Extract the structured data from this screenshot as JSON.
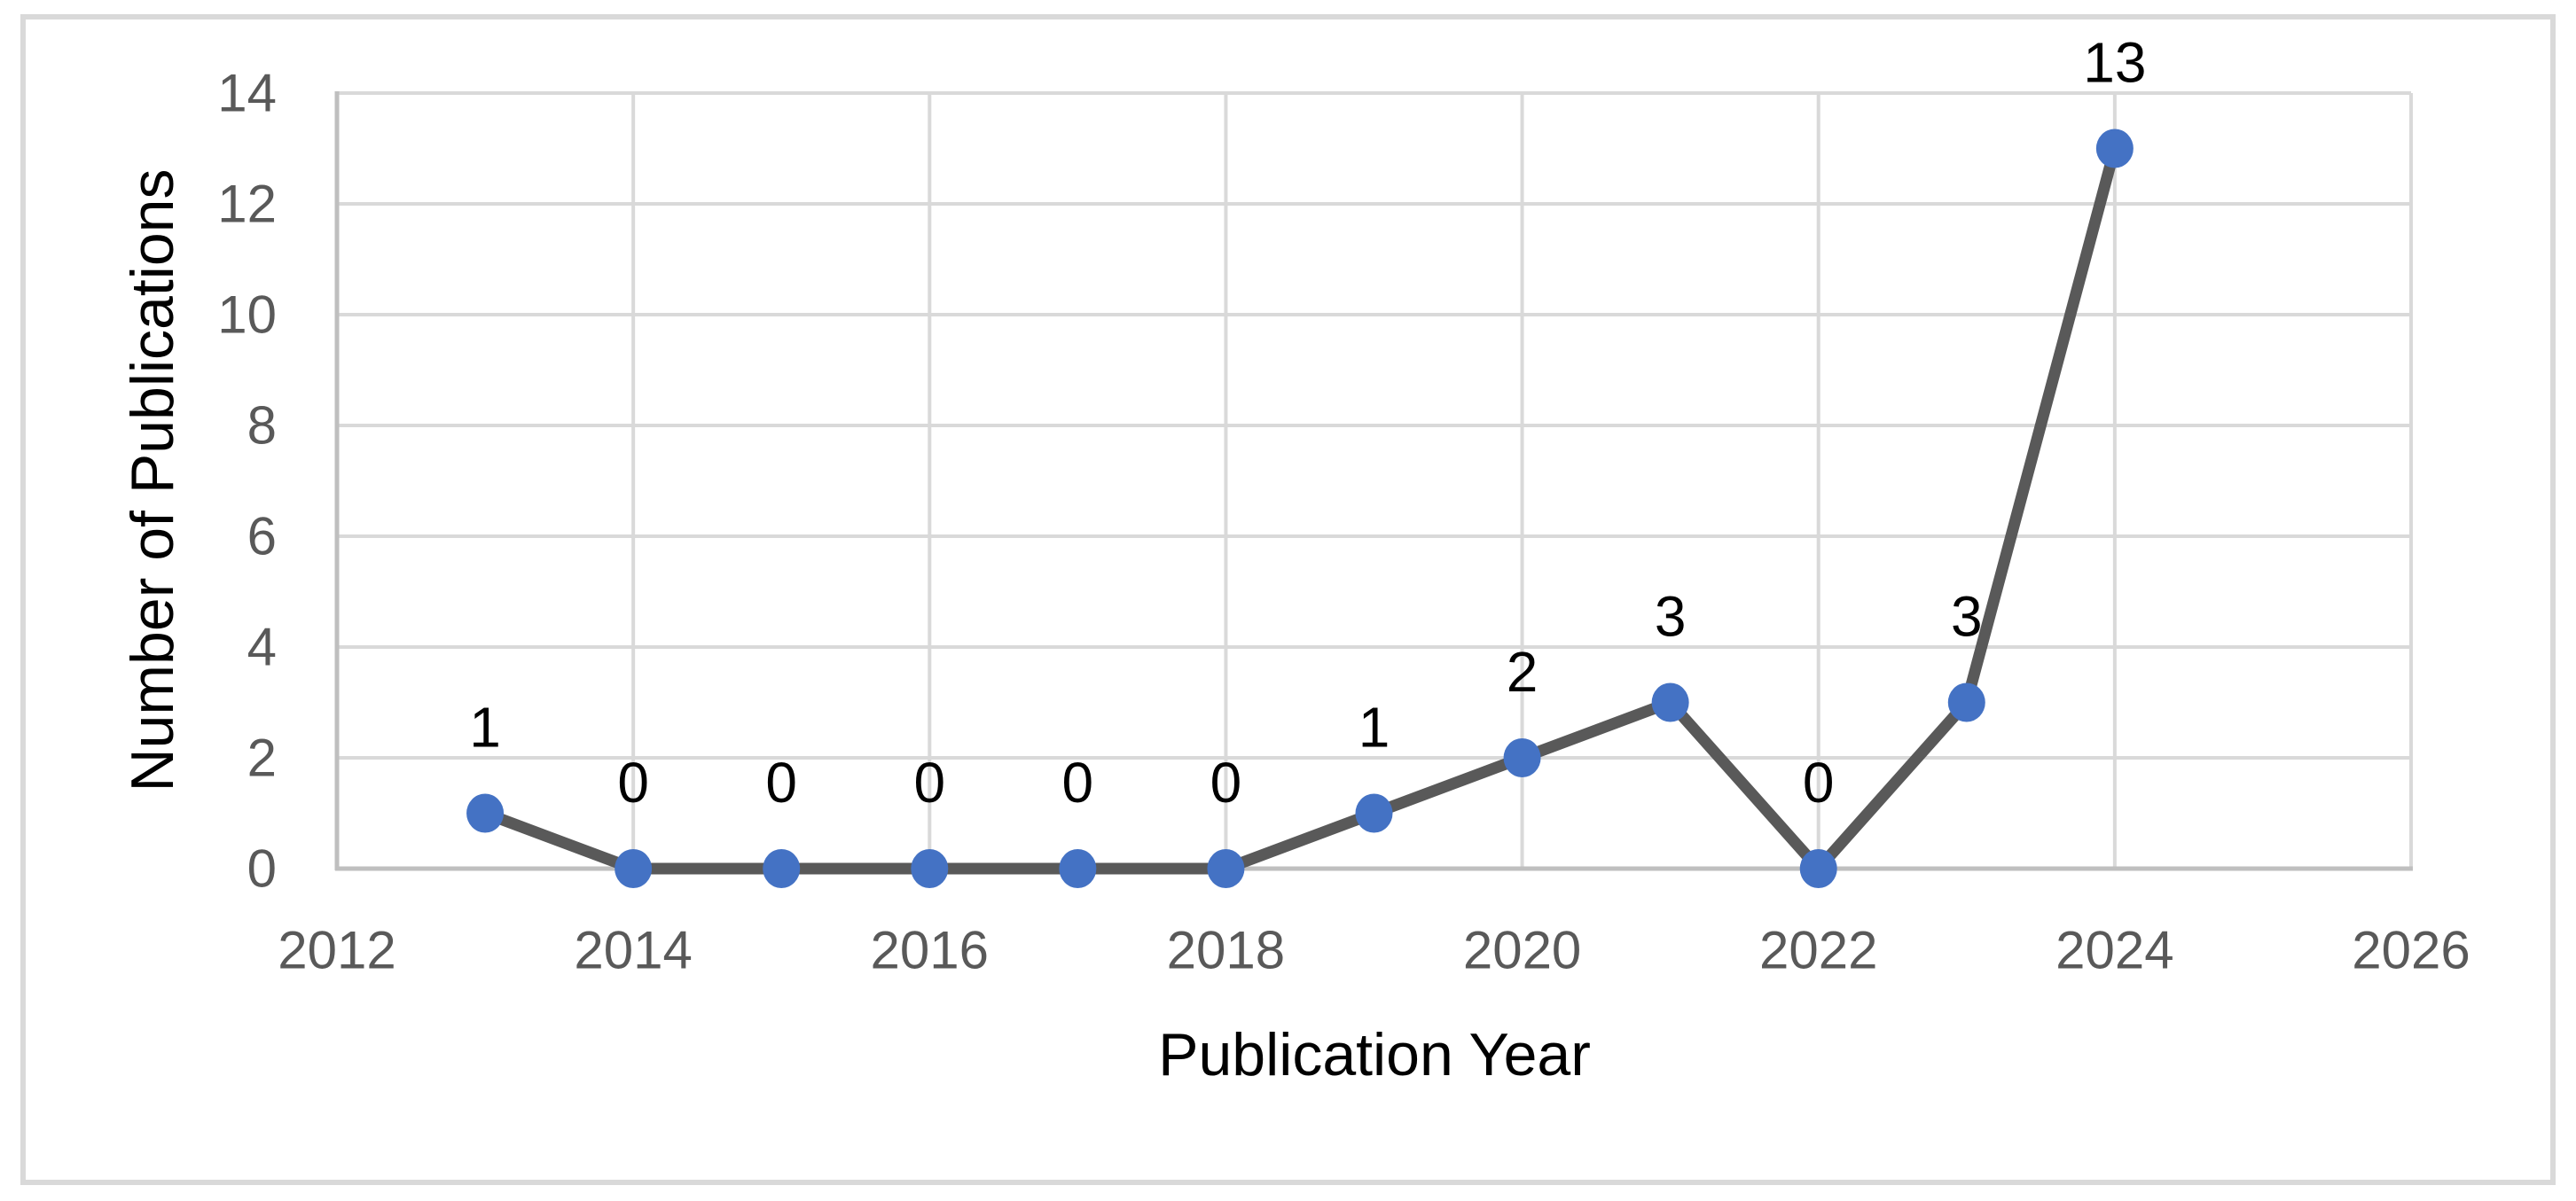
{
  "chart_data": {
    "type": "line",
    "title": "",
    "x": [
      2013,
      2014,
      2015,
      2016,
      2017,
      2018,
      2019,
      2020,
      2021,
      2022,
      2023,
      2024
    ],
    "values": [
      1,
      0,
      0,
      0,
      0,
      0,
      1,
      2,
      3,
      0,
      3,
      13
    ],
    "data_labels": [
      "1",
      "0",
      "0",
      "0",
      "0",
      "0",
      "1",
      "2",
      "3",
      "0",
      "3",
      "13"
    ],
    "xlabel": "Publication Year",
    "ylabel": "Number of Publications",
    "xlim": [
      2012,
      2026
    ],
    "ylim": [
      0,
      14
    ],
    "x_ticks": [
      2012,
      2014,
      2016,
      2018,
      2020,
      2022,
      2024,
      2026
    ],
    "y_ticks": [
      0,
      2,
      4,
      6,
      8,
      10,
      12,
      14
    ],
    "grid": "both",
    "legend": "none",
    "marker_shape": "circle",
    "colors": {
      "line": "#595959",
      "marker": "#4472C4",
      "gridline": "#D9D9D9",
      "axis_line": "#BFBFBF",
      "tick_label": "#595959",
      "text": "#000000",
      "frame_border": "#D9D9D9",
      "background": "#FFFFFF"
    }
  }
}
